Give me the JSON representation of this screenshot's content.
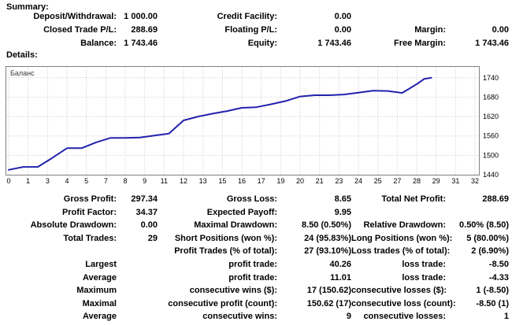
{
  "window": {
    "summary_title": "Summary:",
    "details_title": "Details:"
  },
  "summary": {
    "rows": [
      [
        "Deposit/Withdrawal:",
        "1 000.00",
        "Credit Facility:",
        "0.00",
        "",
        ""
      ],
      [
        "Closed Trade P/L:",
        "288.69",
        "Floating P/L:",
        "0.00",
        "Margin:",
        "0.00"
      ],
      [
        "Balance:",
        "1 743.46",
        "Equity:",
        "1 743.46",
        "Free Margin:",
        "1 743.46"
      ]
    ]
  },
  "stats": {
    "rows": [
      [
        "Gross Profit:",
        "297.34",
        "Gross Loss:",
        "8.65",
        "Total Net Profit:",
        "288.69"
      ],
      [
        "Profit Factor:",
        "34.37",
        "Expected Payoff:",
        "9.95",
        "",
        ""
      ],
      [
        "Absolute Drawdown:",
        "0.00",
        "Maximal Drawdown:",
        "8.50 (0.50%)",
        "Relative Drawdown:",
        "0.50% (8.50)"
      ],
      [
        "Total Trades:",
        "29",
        "Short Positions (won %):",
        "24 (95.83%)",
        "Long Positions (won %):",
        "5 (80.00%)"
      ],
      [
        "",
        "",
        "Profit Trades (% of total):",
        "27 (93.10%)",
        "Loss trades (% of total):",
        "2 (6.90%)"
      ],
      [
        "Largest",
        "",
        "profit trade:",
        "40.26",
        "loss trade:",
        "-8.50"
      ],
      [
        "Average",
        "",
        "profit trade:",
        "11.01",
        "loss trade:",
        "-4.33"
      ],
      [
        "Maximum",
        "",
        "consecutive wins ($):",
        "17 (150.62)",
        "consecutive losses ($):",
        "1 (-8.50)"
      ],
      [
        "Maximal",
        "",
        "consecutive profit (count):",
        "150.62 (17)",
        "consecutive loss (count):",
        "-8.50 (1)"
      ],
      [
        "Average",
        "",
        "consecutive wins:",
        "9",
        "consecutive losses:",
        "1"
      ]
    ]
  },
  "chart_data": {
    "type": "line",
    "title": "Баланс",
    "legend": "Баланс",
    "x_tick_labels": [
      "0",
      "1",
      "3",
      "4",
      "5",
      "7",
      "8",
      "9",
      "11",
      "12",
      "13",
      "15",
      "16",
      "17",
      "19",
      "20",
      "21",
      "23",
      "24",
      "25",
      "27",
      "28",
      "29",
      "31",
      "32"
    ],
    "y_ticks": [
      1440,
      1500,
      1560,
      1620,
      1680,
      1740
    ],
    "x_range": [
      0,
      32
    ],
    "y_range": [
      1440,
      1776
    ],
    "grid": true,
    "legend_position": "top-left",
    "line_color": "#2222ae",
    "grid_color": "#c8c8c8",
    "border_color": "#808080",
    "series": [
      {
        "name": "Баланс",
        "points": [
          [
            0,
            1455
          ],
          [
            1,
            1464
          ],
          [
            2,
            1464
          ],
          [
            3,
            1492
          ],
          [
            4,
            1522
          ],
          [
            5,
            1522
          ],
          [
            6,
            1540
          ],
          [
            7,
            1554
          ],
          [
            8,
            1554
          ],
          [
            9,
            1555
          ],
          [
            10,
            1561
          ],
          [
            11,
            1567
          ],
          [
            12,
            1608
          ],
          [
            13,
            1620
          ],
          [
            14,
            1629
          ],
          [
            15,
            1637
          ],
          [
            16,
            1647
          ],
          [
            17,
            1649
          ],
          [
            18,
            1658
          ],
          [
            19,
            1668
          ],
          [
            20,
            1682
          ],
          [
            21,
            1686
          ],
          [
            22,
            1686
          ],
          [
            23,
            1688
          ],
          [
            24,
            1694
          ],
          [
            25,
            1700
          ],
          [
            26,
            1699
          ],
          [
            27,
            1693
          ],
          [
            28,
            1720
          ],
          [
            28.5,
            1736
          ],
          [
            29,
            1740
          ]
        ]
      }
    ]
  }
}
